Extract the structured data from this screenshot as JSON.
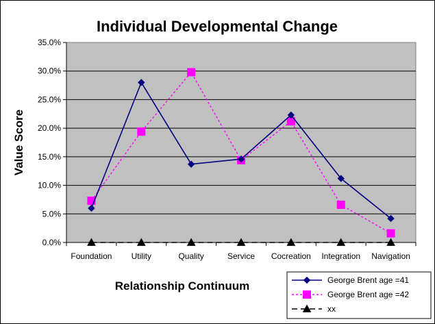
{
  "chart_data": {
    "type": "line",
    "title": "Individual Developmental Change",
    "xlabel": "Relationship Continuum",
    "ylabel": "Value Score",
    "categories": [
      "Foundation",
      "Utility",
      "Quality",
      "Service",
      "Cocreation",
      "Integration",
      "Navigation"
    ],
    "ylim": [
      0,
      35
    ],
    "yticks": [
      0,
      5,
      10,
      15,
      20,
      25,
      30,
      35
    ],
    "ytick_labels": [
      "0.0%",
      "5.0%",
      "10.0%",
      "15.0%",
      "20.0%",
      "25.0%",
      "30.0%",
      "35.0%"
    ],
    "grid": "horizontal",
    "legend_position": "bottom-right",
    "plot_background": "#C0C0C0",
    "series": [
      {
        "name": "George Brent  age =41",
        "values": [
          6.0,
          28.0,
          13.7,
          14.6,
          22.3,
          11.2,
          4.2
        ],
        "color": "#000080",
        "line_style": "solid",
        "marker": "diamond"
      },
      {
        "name": "George Brent age =42",
        "values": [
          7.3,
          19.4,
          29.8,
          14.4,
          21.2,
          6.6,
          1.6
        ],
        "color": "#FF00FF",
        "line_style": "dotted",
        "marker": "square"
      },
      {
        "name": "xx",
        "values": [
          0,
          0,
          0,
          0,
          0,
          0,
          0
        ],
        "color": "#000000",
        "line_style": "dashed",
        "marker": "triangle"
      }
    ]
  }
}
